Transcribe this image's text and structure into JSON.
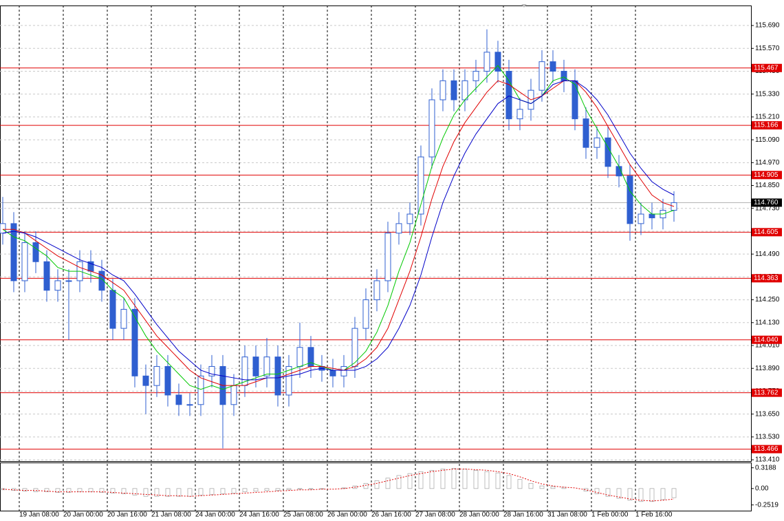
{
  "chart_data": {
    "type": "candlestick",
    "candle_color": "#2f5fd0",
    "categories": [
      null,
      null,
      "19 Jan 08:00",
      null,
      null,
      null,
      "20 Jan 00:00",
      null,
      null,
      null,
      "20 Jan 16:00",
      null,
      null,
      null,
      "21 Jan 08:00",
      null,
      null,
      null,
      "24 Jan 00:00",
      null,
      null,
      null,
      "24 Jan 16:00",
      null,
      null,
      null,
      "25 Jan 08:00",
      null,
      null,
      null,
      "26 Jan 00:00",
      null,
      null,
      null,
      "26 Jan 16:00",
      null,
      null,
      null,
      "27 Jan 08:00",
      null,
      null,
      null,
      "28 Jan 00:00",
      null,
      null,
      null,
      "28 Jan 16:00",
      null,
      null,
      null,
      "31 Jan 08:00",
      null,
      null,
      null,
      "1 Feb 00:00",
      null,
      null,
      null,
      "1 Feb 16:00",
      null,
      null,
      null
    ],
    "open": [
      114.6,
      114.65,
      114.35,
      114.55,
      114.45,
      114.3,
      114.35,
      114.35,
      114.45,
      114.4,
      114.3,
      114.1,
      114.2,
      113.85,
      113.8,
      113.9,
      113.75,
      113.7,
      113.7,
      113.85,
      113.9,
      113.7,
      113.8,
      113.95,
      113.85,
      113.95,
      113.75,
      113.9,
      114.0,
      113.9,
      113.88,
      113.85,
      113.9,
      114.1,
      114.25,
      114.35,
      114.6,
      114.65,
      114.7,
      115.0,
      115.3,
      115.4,
      115.3,
      115.4,
      115.45,
      115.55,
      115.45,
      115.2,
      115.25,
      115.35,
      115.5,
      115.45,
      115.4,
      115.2,
      115.05,
      115.1,
      114.95,
      114.9,
      114.65,
      114.7,
      114.68,
      114.72
    ],
    "high": [
      114.79,
      114.71,
      114.61,
      114.61,
      114.51,
      114.41,
      114.41,
      114.51,
      114.51,
      114.46,
      114.36,
      114.26,
      114.26,
      113.91,
      113.96,
      113.96,
      113.81,
      113.76,
      113.91,
      113.96,
      113.96,
      113.86,
      114.01,
      114.01,
      114.05,
      114.01,
      113.96,
      114.13,
      114.06,
      113.96,
      113.94,
      113.96,
      114.16,
      114.31,
      114.41,
      114.66,
      114.71,
      114.76,
      115.06,
      115.36,
      115.46,
      115.46,
      115.46,
      115.51,
      115.67,
      115.61,
      115.51,
      115.31,
      115.41,
      115.56,
      115.56,
      115.51,
      115.46,
      115.26,
      115.16,
      115.16,
      115.01,
      114.96,
      114.76,
      114.76,
      114.78,
      114.82
    ],
    "low": [
      114.54,
      114.29,
      114.29,
      114.39,
      114.24,
      114.24,
      114.04,
      114.29,
      114.34,
      114.24,
      114.04,
      114.04,
      113.79,
      113.65,
      113.74,
      113.69,
      113.64,
      113.64,
      113.64,
      113.79,
      113.47,
      113.64,
      113.74,
      113.79,
      113.79,
      113.69,
      113.69,
      113.84,
      113.84,
      113.82,
      113.79,
      113.79,
      113.84,
      114.04,
      114.19,
      114.29,
      114.54,
      114.59,
      114.64,
      114.94,
      115.24,
      115.24,
      115.24,
      115.34,
      115.39,
      115.39,
      115.14,
      115.14,
      115.19,
      115.29,
      115.39,
      115.34,
      115.14,
      114.99,
      114.99,
      114.89,
      114.84,
      114.56,
      114.59,
      114.62,
      114.62,
      114.66
    ],
    "close": [
      114.65,
      114.35,
      114.55,
      114.45,
      114.3,
      114.35,
      114.35,
      114.45,
      114.4,
      114.3,
      114.1,
      114.2,
      113.85,
      113.8,
      113.9,
      113.75,
      113.7,
      113.7,
      113.85,
      113.9,
      113.7,
      113.8,
      113.95,
      113.85,
      113.95,
      113.75,
      113.9,
      114.0,
      113.9,
      113.88,
      113.85,
      113.9,
      114.1,
      114.25,
      114.35,
      114.6,
      114.65,
      114.7,
      115.0,
      115.3,
      115.4,
      115.3,
      115.4,
      115.45,
      115.55,
      115.45,
      115.2,
      115.25,
      115.35,
      115.5,
      115.45,
      115.4,
      115.2,
      115.05,
      115.1,
      114.95,
      114.9,
      114.65,
      114.7,
      114.68,
      114.72,
      114.76
    ],
    "moving_averages": [
      {
        "color": "#00c800",
        "values": [
          114.62,
          114.58,
          114.56,
          114.52,
          114.48,
          114.42,
          114.4,
          114.4,
          114.38,
          114.36,
          114.3,
          114.26,
          114.16,
          114.06,
          113.98,
          113.92,
          113.86,
          113.8,
          113.78,
          113.8,
          113.78,
          113.8,
          113.82,
          113.84,
          113.86,
          113.86,
          113.88,
          113.9,
          113.92,
          113.9,
          113.88,
          113.88,
          113.92,
          113.98,
          114.08,
          114.22,
          114.4,
          114.55,
          114.75,
          114.95,
          115.1,
          115.22,
          115.3,
          115.36,
          115.42,
          115.48,
          115.4,
          115.3,
          115.28,
          115.32,
          115.4,
          115.42,
          115.38,
          115.25,
          115.15,
          115.05,
          114.95,
          114.82,
          114.75,
          114.7,
          114.7,
          114.72
        ]
      },
      {
        "color": "#e00000",
        "values": [
          114.62,
          114.62,
          114.6,
          114.56,
          114.52,
          114.48,
          114.45,
          114.42,
          114.4,
          114.38,
          114.34,
          114.3,
          114.22,
          114.14,
          114.06,
          114.0,
          113.94,
          113.88,
          113.84,
          113.82,
          113.8,
          113.8,
          113.8,
          113.82,
          113.84,
          113.84,
          113.86,
          113.88,
          113.9,
          113.9,
          113.89,
          113.88,
          113.9,
          113.94,
          114.0,
          114.1,
          114.25,
          114.4,
          114.58,
          114.78,
          114.95,
          115.08,
          115.18,
          115.26,
          115.34,
          115.4,
          115.38,
          115.34,
          115.3,
          115.32,
          115.36,
          115.4,
          115.4,
          115.34,
          115.26,
          115.16,
          115.06,
          114.96,
          114.88,
          114.8,
          114.76,
          114.74
        ]
      },
      {
        "color": "#0000c8",
        "values": [
          114.6,
          114.61,
          114.6,
          114.58,
          114.55,
          114.52,
          114.49,
          114.46,
          114.44,
          114.42,
          114.38,
          114.35,
          114.28,
          114.2,
          114.12,
          114.05,
          113.98,
          113.93,
          113.88,
          113.86,
          113.85,
          113.84,
          113.83,
          113.83,
          113.84,
          113.84,
          113.85,
          113.86,
          113.88,
          113.89,
          113.88,
          113.88,
          113.88,
          113.9,
          113.94,
          114.0,
          114.1,
          114.22,
          114.38,
          114.58,
          114.76,
          114.9,
          115.02,
          115.12,
          115.2,
          115.28,
          115.32,
          115.3,
          115.28,
          115.32,
          115.38,
          115.4,
          115.4,
          115.36,
          115.3,
          115.22,
          115.12,
          115.02,
          114.94,
          114.87,
          114.83,
          114.8
        ]
      }
    ],
    "ylim": [
      113.403,
      115.795
    ],
    "yticks": [
      {
        "value": 115.69,
        "label": "115.690"
      },
      {
        "value": 115.57,
        "label": "115.570"
      },
      {
        "value": 115.45,
        "label": "115.450"
      },
      {
        "value": 115.33,
        "label": "115.330"
      },
      {
        "value": 115.21,
        "label": "115.210"
      },
      {
        "value": 115.09,
        "label": "115.090"
      },
      {
        "value": 114.97,
        "label": "114.970"
      },
      {
        "value": 114.85,
        "label": "114.850"
      },
      {
        "value": 114.73,
        "label": "114.730"
      },
      {
        "value": 114.61,
        "label": "114.610"
      },
      {
        "value": 114.49,
        "label": "114.490"
      },
      {
        "value": 114.37,
        "label": "114.370"
      },
      {
        "value": 114.25,
        "label": "114.250"
      },
      {
        "value": 114.13,
        "label": "114.130"
      },
      {
        "value": 114.01,
        "label": "114.010"
      },
      {
        "value": 113.89,
        "label": "113.890"
      },
      {
        "value": 113.77,
        "label": "113.770"
      },
      {
        "value": 113.65,
        "label": "113.650"
      },
      {
        "value": 113.53,
        "label": "113.530"
      },
      {
        "value": 113.41,
        "label": "113.410"
      }
    ],
    "levels": {
      "color": "#e00000",
      "values": [
        115.467,
        115.166,
        114.905,
        114.605,
        114.363,
        {
          "value": 114.04,
          "label": "114.040"
        },
        113.762,
        113.466
      ]
    },
    "current_price": {
      "value": 114.76,
      "label": "114.760"
    },
    "grid": true,
    "indicator": {
      "ylim": [
        -0.34,
        0.4
      ],
      "yticks": [
        0.3188,
        {
          "value": 0,
          "label": "0.00"
        },
        -0.2519
      ],
      "histogram_color": "#a0a0a0",
      "signal_color": "#e00000",
      "histogram": [
        -0.02,
        -0.03,
        -0.04,
        -0.05,
        -0.05,
        -0.06,
        -0.06,
        -0.05,
        -0.05,
        -0.06,
        -0.07,
        -0.08,
        -0.1,
        -0.12,
        -0.12,
        -0.12,
        -0.12,
        -0.12,
        -0.1,
        -0.09,
        -0.08,
        -0.07,
        -0.05,
        -0.04,
        -0.03,
        -0.03,
        -0.02,
        -0.01,
        -0.01,
        -0.01,
        0.0,
        0.01,
        0.04,
        0.08,
        0.12,
        0.16,
        0.2,
        0.23,
        0.26,
        0.28,
        0.3,
        0.31,
        0.3,
        0.28,
        0.26,
        0.24,
        0.2,
        0.14,
        0.08,
        0.04,
        0.03,
        0.02,
        0.0,
        -0.04,
        -0.08,
        -0.12,
        -0.15,
        -0.18,
        -0.2,
        -0.2,
        -0.17,
        -0.14
      ],
      "signal": [
        -0.01,
        -0.02,
        -0.03,
        -0.03,
        -0.04,
        -0.05,
        -0.05,
        -0.05,
        -0.05,
        -0.05,
        -0.06,
        -0.07,
        -0.08,
        -0.09,
        -0.1,
        -0.11,
        -0.11,
        -0.12,
        -0.11,
        -0.1,
        -0.09,
        -0.08,
        -0.07,
        -0.06,
        -0.05,
        -0.04,
        -0.03,
        -0.02,
        -0.02,
        -0.01,
        -0.01,
        0.0,
        0.02,
        0.05,
        0.08,
        0.12,
        0.16,
        0.2,
        0.23,
        0.26,
        0.28,
        0.3,
        0.3,
        0.29,
        0.28,
        0.26,
        0.23,
        0.18,
        0.12,
        0.07,
        0.04,
        0.02,
        0.01,
        -0.02,
        -0.06,
        -0.1,
        -0.13,
        -0.16,
        -0.18,
        -0.19,
        -0.18,
        -0.16
      ]
    }
  }
}
